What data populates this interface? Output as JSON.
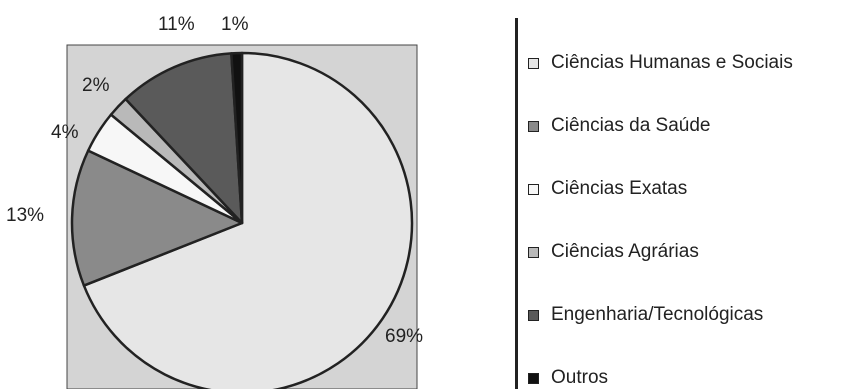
{
  "chart_data": {
    "type": "pie",
    "title": "",
    "slices": [
      {
        "label": "Ciências Humanas e Sociais",
        "value": 69,
        "display": "69%",
        "color": "#e6e6e6"
      },
      {
        "label": "Ciências da Saúde",
        "value": 13,
        "display": "13%",
        "color": "#8a8a8a"
      },
      {
        "label": "Ciências Exatas",
        "value": 4,
        "display": "4%",
        "color": "#f7f7f7"
      },
      {
        "label": "Ciências Agrárias",
        "value": 2,
        "display": "2%",
        "color": "#b9b9b9"
      },
      {
        "label": "Engenharia/Tecnológicas",
        "value": 11,
        "display": "11%",
        "color": "#5a5a5a"
      },
      {
        "label": "Outros",
        "value": 1,
        "display": "1%",
        "color": "#111111"
      }
    ],
    "plot_background": "#d4d4d4",
    "legend_position": "right"
  }
}
